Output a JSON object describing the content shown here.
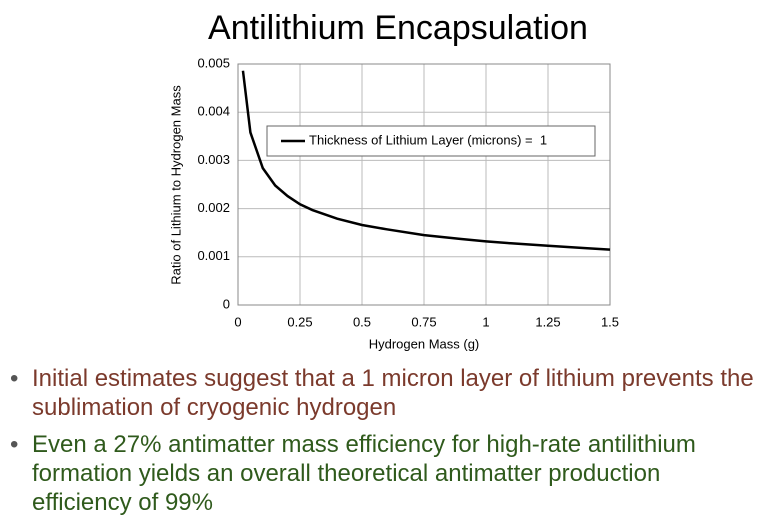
{
  "chart_data": {
    "type": "line",
    "title": "Antilithium Encapsulation",
    "xlabel": "Hydrogen Mass (g)",
    "ylabel": "Ratio of Lithium to Hydrogen Mass",
    "x": [
      0.02,
      0.05,
      0.1,
      0.15,
      0.2,
      0.25,
      0.3,
      0.4,
      0.5,
      0.6,
      0.75,
      0.9,
      1,
      1.1,
      1.25,
      1.4,
      1.5
    ],
    "series": [
      {
        "name": "Thickness of Lithium Layer (microns) =  1",
        "color": "#000000",
        "values": [
          0.00486,
          0.00358,
          0.00284,
          0.00248,
          0.00226,
          0.00209,
          0.00197,
          0.00179,
          0.00166,
          0.00157,
          0.00145,
          0.00137,
          0.00132,
          0.00128,
          0.00123,
          0.00118,
          0.00115
        ]
      }
    ],
    "xlim": [
      0,
      1.5
    ],
    "xticks": [
      0,
      0.25,
      0.5,
      0.75,
      1,
      1.25,
      1.5
    ],
    "ylim": [
      0,
      0.005
    ],
    "yticks": [
      0,
      0.001,
      0.002,
      0.003,
      0.004,
      0.005
    ],
    "grid": true,
    "legend": "upper-right"
  },
  "bullets": [
    "Initial estimates suggest that a 1 micron layer of lithium prevents the sublimation of cryogenic hydrogen",
    "Even a 27% antimatter mass efficiency for high-rate antilithium formation yields an overall theoretical antimatter production efficiency of 99%"
  ]
}
